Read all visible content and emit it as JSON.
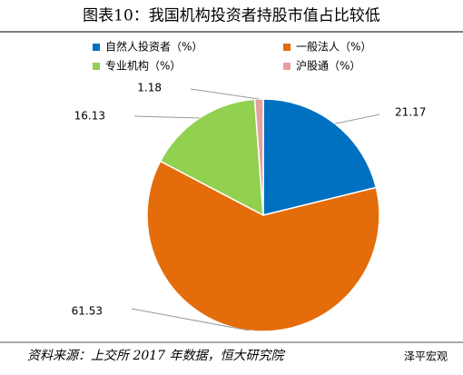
{
  "chart_data": {
    "type": "pie",
    "title": "图表10：我国机构投资者持股市值占比较低",
    "categories": [
      "自然人投资者（%）",
      "一般法人（%）",
      "专业机构（%）",
      "沪股通（%）"
    ],
    "values": [
      21.17,
      61.53,
      16.13,
      1.18
    ],
    "colors": [
      "#0070c0",
      "#e46c0a",
      "#92d050",
      "#e6a0a0"
    ],
    "source": "资料来源：上交所 2017 年数据，恒大研究院",
    "watermark": "泽平宏观"
  }
}
